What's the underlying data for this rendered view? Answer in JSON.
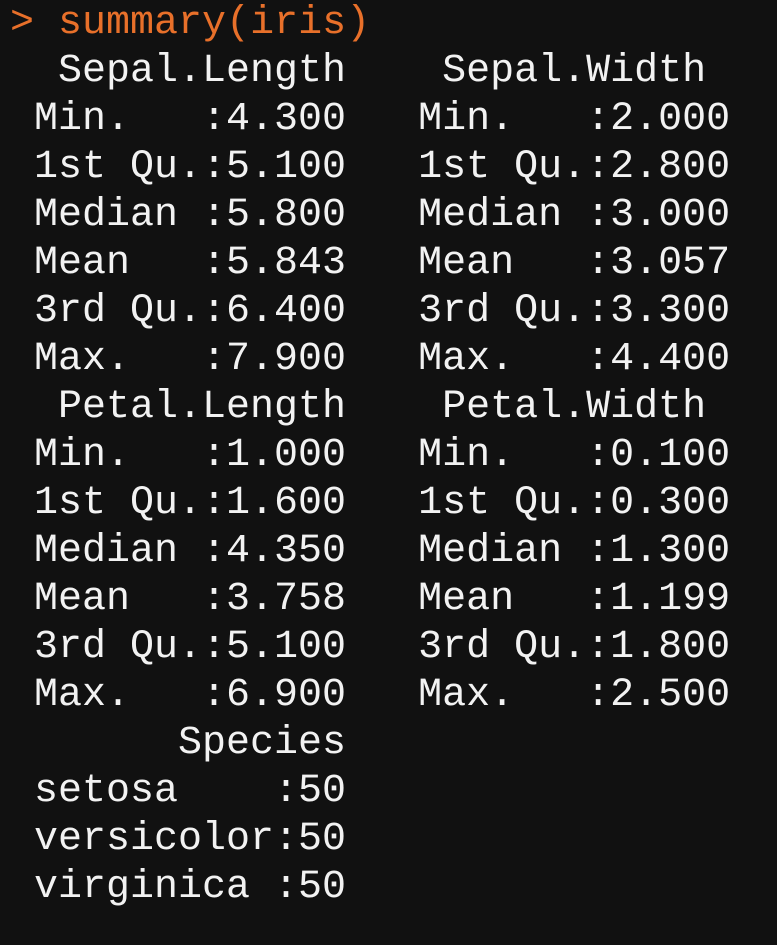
{
  "console": {
    "prompt_symbol": ">",
    "command": "summary(iris)",
    "prompt_color": "#e8702a",
    "text_color": "#f2f2f2",
    "background": "#111111",
    "output_lines": [
      "  Sepal.Length    Sepal.Width   ",
      " Min.   :4.300   Min.   :2.000  ",
      " 1st Qu.:5.100   1st Qu.:2.800  ",
      " Median :5.800   Median :3.000  ",
      " Mean   :5.843   Mean   :3.057  ",
      " 3rd Qu.:6.400   3rd Qu.:3.300  ",
      " Max.   :7.900   Max.   :4.400  ",
      "  Petal.Length    Petal.Width   ",
      " Min.   :1.000   Min.   :0.100  ",
      " 1st Qu.:1.600   1st Qu.:0.300  ",
      " Median :4.350   Median :1.300  ",
      " Mean   :3.758   Mean   :1.199  ",
      " 3rd Qu.:5.100   3rd Qu.:1.800  ",
      " Max.   :6.900   Max.   :2.500  ",
      "       Species  ",
      " setosa    :50  ",
      " versicolor:50  ",
      " virginica :50  "
    ]
  }
}
